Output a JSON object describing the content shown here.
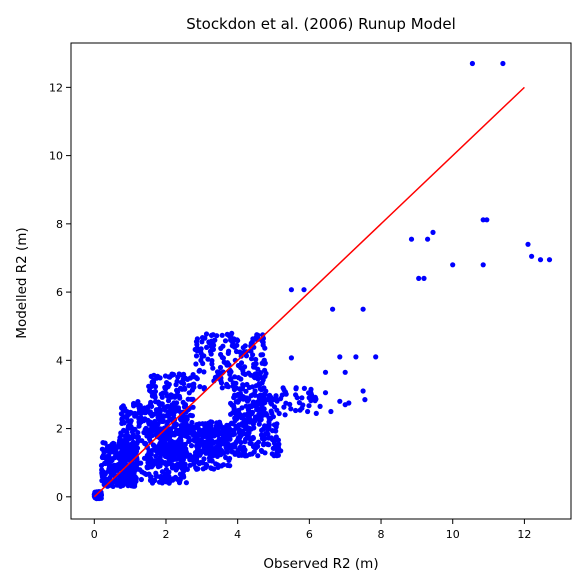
{
  "chart_data": {
    "type": "scatter",
    "title": "Stockdon et al. (2006) Runup Model",
    "xlabel": "Observed R2 (m)",
    "ylabel": "Modelled R2 (m)",
    "xlim": [
      -0.65,
      13.3
    ],
    "ylim": [
      -0.65,
      13.3
    ],
    "xticks": [
      0,
      2,
      4,
      6,
      8,
      10,
      12
    ],
    "yticks": [
      0,
      2,
      4,
      6,
      8,
      10,
      12
    ],
    "grid": false,
    "legend": "none",
    "colors": {
      "points": "#0000ff",
      "line": "#ff0000",
      "axes": "#000000"
    },
    "series": [
      {
        "kind": "points",
        "color": "#0000ff",
        "clusters": [
          {
            "n": 110,
            "x": [
              0.0,
              0.2
            ],
            "y": [
              -0.05,
              0.15
            ]
          },
          {
            "n": 260,
            "x": [
              0.2,
              1.2
            ],
            "y": [
              0.3,
              1.6
            ]
          },
          {
            "n": 420,
            "x": [
              0.7,
              2.6
            ],
            "y": [
              0.4,
              2.8
            ]
          },
          {
            "n": 220,
            "x": [
              1.8,
              3.8
            ],
            "y": [
              0.8,
              2.0
            ]
          },
          {
            "n": 160,
            "x": [
              1.5,
              2.8
            ],
            "y": [
              1.8,
              3.6
            ]
          },
          {
            "n": 190,
            "x": [
              2.8,
              4.8
            ],
            "y": [
              3.0,
              4.8
            ]
          },
          {
            "n": 240,
            "x": [
              2.8,
              5.2
            ],
            "y": [
              1.2,
              2.2
            ]
          },
          {
            "n": 120,
            "x": [
              3.8,
              5.0
            ],
            "y": [
              2.2,
              3.0
            ]
          },
          {
            "n": 40,
            "x": [
              5.0,
              6.2
            ],
            "y": [
              2.4,
              3.2
            ]
          }
        ],
        "points": [
          [
            5.5,
            6.07
          ],
          [
            5.85,
            6.07
          ],
          [
            5.5,
            4.07
          ],
          [
            6.65,
            5.5
          ],
          [
            7.5,
            5.5
          ],
          [
            6.85,
            4.1
          ],
          [
            7.3,
            4.1
          ],
          [
            7.85,
            4.1
          ],
          [
            6.45,
            3.65
          ],
          [
            7.0,
            3.65
          ],
          [
            7.5,
            3.1
          ],
          [
            6.45,
            3.05
          ],
          [
            6.85,
            2.8
          ],
          [
            7.1,
            2.75
          ],
          [
            7.55,
            2.85
          ],
          [
            6.6,
            2.5
          ],
          [
            5.95,
            2.5
          ],
          [
            6.3,
            2.65
          ],
          [
            7.0,
            2.7
          ],
          [
            8.85,
            7.55
          ],
          [
            9.3,
            7.55
          ],
          [
            9.45,
            7.75
          ],
          [
            9.05,
            6.4
          ],
          [
            9.2,
            6.4
          ],
          [
            10.0,
            6.8
          ],
          [
            10.85,
            6.8
          ],
          [
            10.85,
            8.12
          ],
          [
            10.95,
            8.12
          ],
          [
            12.1,
            7.4
          ],
          [
            12.2,
            7.05
          ],
          [
            12.45,
            6.95
          ],
          [
            12.7,
            6.95
          ],
          [
            10.55,
            12.7
          ],
          [
            11.4,
            12.7
          ]
        ]
      },
      {
        "kind": "line",
        "color": "#ff0000",
        "x": [
          0,
          12
        ],
        "y": [
          0,
          12
        ]
      }
    ]
  }
}
